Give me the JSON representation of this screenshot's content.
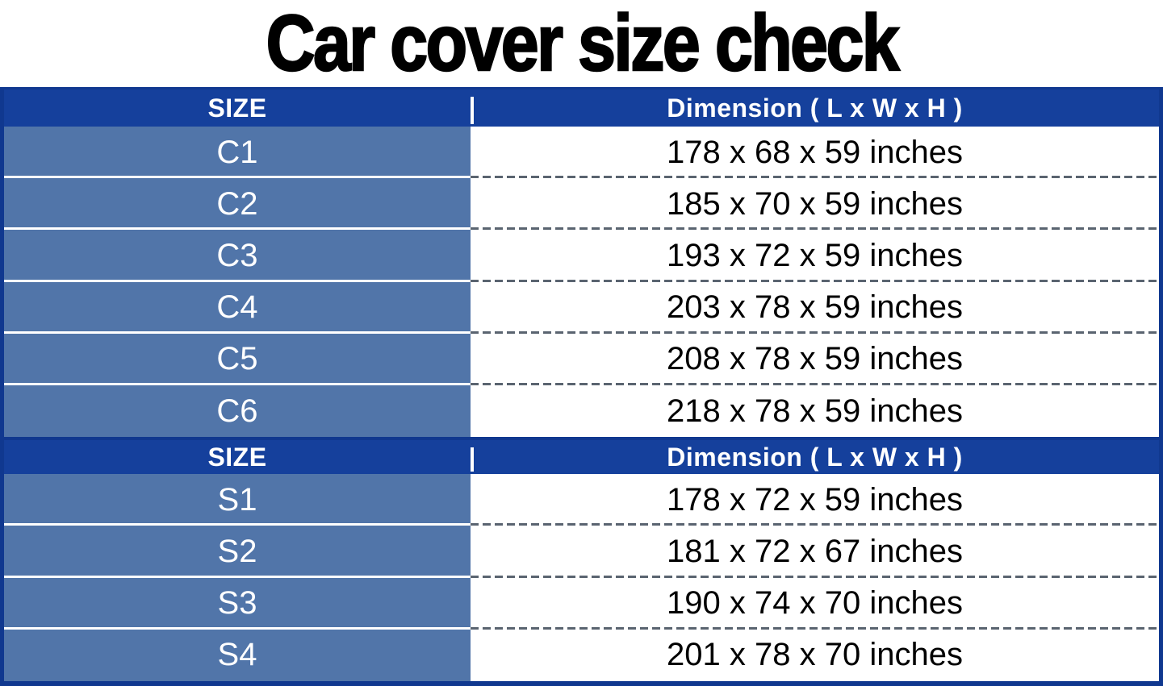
{
  "title": "Car cover size check",
  "colors": {
    "header_bg": "#15409c",
    "row_bg": "#5175a9",
    "border": "#10388f",
    "dash": "#5a6470",
    "header_text": "#ffffff",
    "row_label_text": "#ffffff",
    "value_text": "#000000",
    "title_color": "#000000"
  },
  "chart_data": {
    "type": "table",
    "title": "Car cover size check",
    "sections": [
      {
        "header": {
          "size": "SIZE",
          "dimension": "Dimension ( L x W x H )"
        },
        "rows": [
          {
            "size": "C1",
            "dimension": "178 x 68 x 59 inches"
          },
          {
            "size": "C2",
            "dimension": "185 x 70 x 59 inches"
          },
          {
            "size": "C3",
            "dimension": "193 x 72 x 59 inches"
          },
          {
            "size": "C4",
            "dimension": "203 x 78 x 59 inches"
          },
          {
            "size": "C5",
            "dimension": "208 x 78 x 59 inches"
          },
          {
            "size": "C6",
            "dimension": "218 x 78 x 59 inches"
          }
        ]
      },
      {
        "header": {
          "size": "SIZE",
          "dimension": "Dimension ( L x W x H )"
        },
        "rows": [
          {
            "size": "S1",
            "dimension": "178 x 72 x 59 inches"
          },
          {
            "size": "S2",
            "dimension": "181 x 72 x 67 inches"
          },
          {
            "size": "S3",
            "dimension": "190 x 74 x 70 inches"
          },
          {
            "size": "S4",
            "dimension": "201 x 78 x 70 inches"
          }
        ]
      }
    ]
  }
}
